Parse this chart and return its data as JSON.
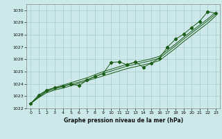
{
  "title": "Graphe pression niveau de la mer (hPa)",
  "bg_color": "#cce8e8",
  "grid_color": "#aacccc",
  "line_color": "#1a5c1a",
  "xlim": [
    -0.5,
    23.5
  ],
  "ylim": [
    1022,
    1030.5
  ],
  "yticks": [
    1022,
    1023,
    1024,
    1025,
    1026,
    1027,
    1028,
    1029,
    1030
  ],
  "xticks": [
    0,
    1,
    2,
    3,
    4,
    5,
    6,
    7,
    8,
    9,
    10,
    11,
    12,
    13,
    14,
    15,
    16,
    17,
    18,
    19,
    20,
    21,
    22,
    23
  ],
  "main_series": [
    1022.4,
    1023.1,
    1023.5,
    1023.7,
    1023.8,
    1024.0,
    1023.85,
    1024.3,
    1024.6,
    1024.85,
    1025.75,
    1025.8,
    1025.55,
    1025.8,
    1025.35,
    1025.7,
    1026.1,
    1027.0,
    1027.65,
    1028.05,
    1028.6,
    1029.1,
    1029.9,
    1029.75
  ],
  "smooth_line1": [
    1022.4,
    1022.95,
    1023.38,
    1023.6,
    1023.78,
    1023.98,
    1024.15,
    1024.35,
    1024.6,
    1024.85,
    1025.05,
    1025.25,
    1025.45,
    1025.6,
    1025.75,
    1025.9,
    1026.1,
    1026.6,
    1027.1,
    1027.65,
    1028.15,
    1028.65,
    1029.15,
    1029.7
  ],
  "smooth_line2": [
    1022.4,
    1023.0,
    1023.45,
    1023.7,
    1023.9,
    1024.1,
    1024.3,
    1024.5,
    1024.75,
    1025.0,
    1025.2,
    1025.4,
    1025.6,
    1025.75,
    1025.9,
    1026.05,
    1026.25,
    1026.75,
    1027.25,
    1027.8,
    1028.3,
    1028.8,
    1029.3,
    1029.85
  ],
  "smooth_line3": [
    1022.4,
    1022.88,
    1023.28,
    1023.5,
    1023.65,
    1023.85,
    1024.05,
    1024.25,
    1024.45,
    1024.65,
    1024.85,
    1025.05,
    1025.25,
    1025.4,
    1025.55,
    1025.7,
    1025.9,
    1026.4,
    1026.9,
    1027.45,
    1027.95,
    1028.45,
    1028.95,
    1029.55
  ]
}
